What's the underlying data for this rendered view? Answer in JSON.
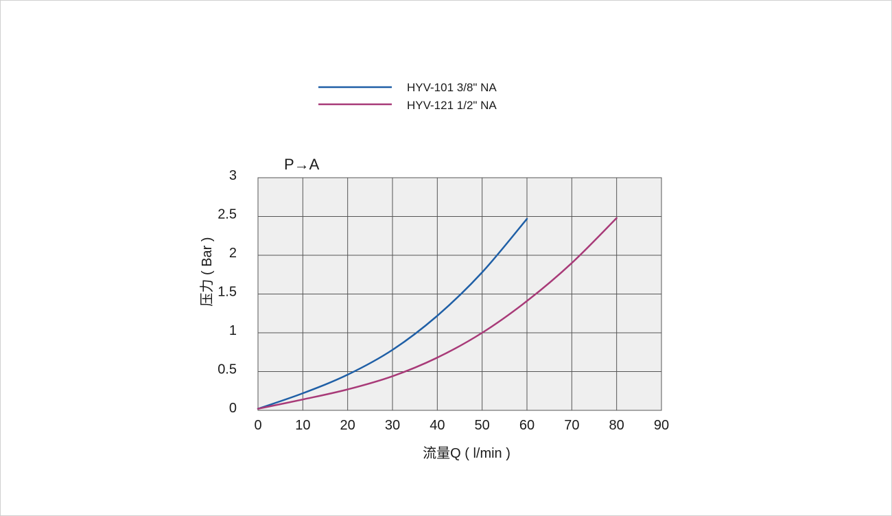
{
  "chart_data": {
    "type": "line",
    "subtitle": "P→A",
    "xlabel": "流量Q ( l/min )",
    "ylabel": "压力 ( Bar )",
    "xlim": [
      0,
      90
    ],
    "ylim": [
      0,
      3
    ],
    "xticks": [
      "0",
      "10",
      "20",
      "30",
      "40",
      "50",
      "60",
      "70",
      "80",
      "90"
    ],
    "yticks": [
      "0",
      "0.5",
      "1",
      "1.5",
      "2",
      "2.5",
      "3"
    ],
    "grid": true,
    "legend_position": "top",
    "plot_background": "#efefef",
    "series": [
      {
        "name": "HYV-101 3/8\" NA",
        "color": "#1f5fa6",
        "x": [
          0,
          10,
          20,
          30,
          40,
          50,
          60
        ],
        "y": [
          0.02,
          0.22,
          0.46,
          0.78,
          1.22,
          1.78,
          2.47
        ]
      },
      {
        "name": "HYV-121 1/2\" NA",
        "color": "#a83a78",
        "x": [
          0,
          10,
          20,
          30,
          40,
          50,
          60,
          70,
          80
        ],
        "y": [
          0.02,
          0.14,
          0.27,
          0.44,
          0.68,
          1.0,
          1.41,
          1.9,
          2.48
        ]
      }
    ]
  }
}
